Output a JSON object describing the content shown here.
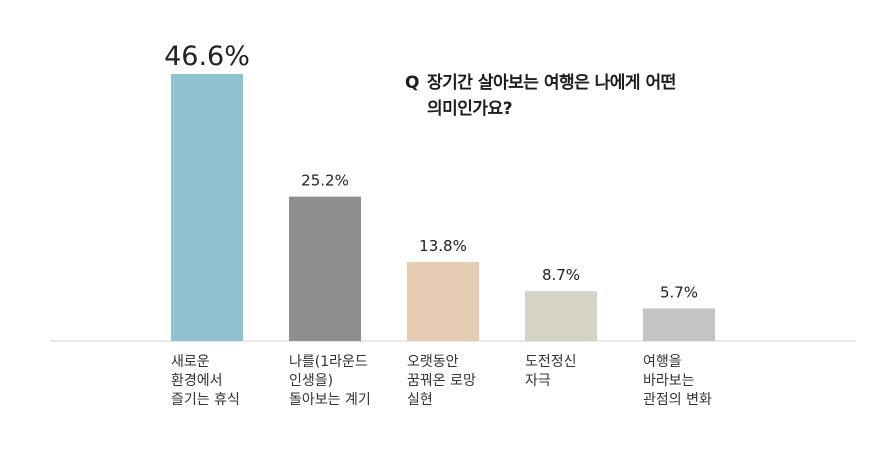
{
  "question": {
    "mark": "Q",
    "line1": "장기간 살아보는 여행은 나에게 어떤",
    "line2": "의미인가요?"
  },
  "chart_data": {
    "type": "bar",
    "categories": [
      [
        "새로운",
        "환경에서",
        "즐기는 휴식"
      ],
      [
        "나를(1라운드",
        "인생을)",
        "돌아보는 계기"
      ],
      [
        "오랫동안",
        "꿈꿔온 로망",
        "실현"
      ],
      [
        "도전정신",
        "자극"
      ],
      [
        "여행을",
        "바라보는",
        "관점의 변화"
      ]
    ],
    "values": [
      46.6,
      25.2,
      13.8,
      8.7,
      5.7
    ],
    "value_labels": [
      "46.6%",
      "25.2%",
      "13.8%",
      "8.7%",
      "5.7%"
    ],
    "colors": [
      "#8fc2cf",
      "#8e8e8e",
      "#e6cbb3",
      "#d5d3c5",
      "#c4c4c4"
    ],
    "ylim": [
      0,
      46.6
    ],
    "grid": false,
    "legend": "none"
  }
}
